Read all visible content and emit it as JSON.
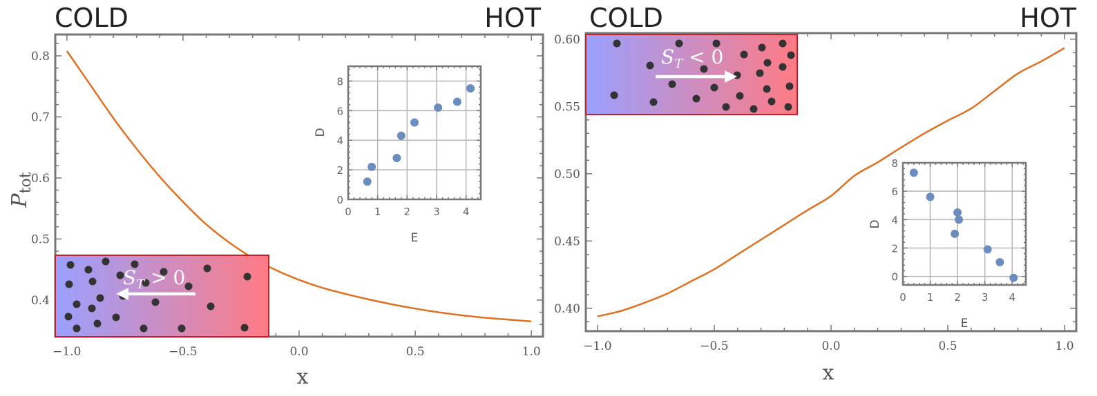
{
  "colors": {
    "curve": "#e07020",
    "point": "#6c8ebf",
    "particle": "#333333",
    "cold": "#9aa0ff",
    "hot": "#ff7b84",
    "box_border": "#c81e2a",
    "arrow": "#ffffff"
  },
  "chart_data": [
    {
      "type": "line",
      "corner_left": "COLD",
      "corner_right": "HOT",
      "xlabel": "x",
      "ylabel": "P",
      "ylabel_sub": "tot",
      "xlim": [
        -1.05,
        1.05
      ],
      "ylim": [
        0.34,
        0.835
      ],
      "xticks": [
        "−1.0",
        "−0.5",
        "0.0",
        "0.5",
        "1.0"
      ],
      "xtick_values": [
        -1.0,
        -0.5,
        0.0,
        0.5,
        1.0
      ],
      "yticks": [
        "0.4",
        "0.5",
        "0.6",
        "0.7",
        "0.8"
      ],
      "ytick_values": [
        0.4,
        0.5,
        0.6,
        0.7,
        0.8
      ],
      "series": [
        {
          "x": [
            -1.0,
            -0.9,
            -0.8,
            -0.7,
            -0.6,
            -0.5,
            -0.4,
            -0.3,
            -0.2,
            -0.1,
            0.0,
            0.1,
            0.2,
            0.3,
            0.4,
            0.5,
            0.6,
            0.7,
            0.8,
            0.9,
            1.0
          ],
          "y": [
            0.808,
            0.753,
            0.698,
            0.648,
            0.602,
            0.561,
            0.524,
            0.494,
            0.469,
            0.449,
            0.433,
            0.42,
            0.41,
            0.401,
            0.393,
            0.386,
            0.38,
            0.375,
            0.371,
            0.368,
            0.365
          ]
        }
      ],
      "box_label": "S",
      "box_label_sub": "T",
      "box_label_rel": " > 0",
      "inset": {
        "type": "scatter",
        "xlabel": "E",
        "ylabel": "D",
        "xlim": [
          0,
          4.5
        ],
        "ylim": [
          0,
          9
        ],
        "xticks": [
          "0",
          "1",
          "2",
          "3",
          "4"
        ],
        "xtick_values": [
          0,
          1,
          2,
          3,
          4
        ],
        "yticks": [
          "0",
          "2",
          "4",
          "6",
          "8"
        ],
        "ytick_values": [
          0,
          2,
          4,
          6,
          8
        ],
        "x": [
          0.65,
          0.8,
          1.65,
          1.8,
          2.25,
          3.05,
          3.7,
          4.15
        ],
        "y": [
          1.2,
          2.2,
          2.8,
          4.3,
          5.2,
          6.2,
          6.6,
          7.5
        ]
      }
    },
    {
      "type": "line",
      "corner_left": "COLD",
      "corner_right": "HOT",
      "xlabel": "x",
      "xlim": [
        -1.05,
        1.05
      ],
      "ylim": [
        0.383,
        0.6045
      ],
      "xticks": [
        "−1.0",
        "−0.5",
        "0.0",
        "0.5",
        "1.0"
      ],
      "xtick_values": [
        -1.0,
        -0.5,
        0.0,
        0.5,
        1.0
      ],
      "yticks": [
        "0.40",
        "0.45",
        "0.50",
        "0.55",
        "0.60"
      ],
      "ytick_values": [
        0.4,
        0.45,
        0.5,
        0.55,
        0.6
      ],
      "series": [
        {
          "x": [
            -1.0,
            -0.9,
            -0.8,
            -0.7,
            -0.6,
            -0.5,
            -0.4,
            -0.3,
            -0.2,
            -0.1,
            0.0,
            0.1,
            0.2,
            0.3,
            0.4,
            0.5,
            0.6,
            0.7,
            0.8,
            0.9,
            1.0
          ],
          "y": [
            0.394,
            0.398,
            0.404,
            0.411,
            0.42,
            0.429,
            0.44,
            0.451,
            0.462,
            0.473,
            0.4835,
            0.4985,
            0.5085,
            0.5195,
            0.53,
            0.5395,
            0.5485,
            0.5615,
            0.5745,
            0.5835,
            0.5935
          ]
        }
      ],
      "box_label": "S",
      "box_label_sub": "T",
      "box_label_rel": " < 0",
      "inset": {
        "type": "scatter",
        "xlabel": "E",
        "ylabel": "D",
        "xlim": [
          0,
          4.5
        ],
        "ylim": [
          -0.6,
          8
        ],
        "xticks": [
          "0",
          "1",
          "2",
          "3",
          "4"
        ],
        "xtick_values": [
          0,
          1,
          2,
          3,
          4
        ],
        "yticks": [
          "0",
          "2",
          "4",
          "6",
          "8"
        ],
        "ytick_values": [
          0,
          2,
          4,
          6,
          8
        ],
        "x": [
          0.4,
          1.0,
          1.9,
          2.0,
          2.05,
          3.1,
          3.55,
          4.05
        ],
        "y": [
          7.3,
          5.6,
          3.0,
          4.5,
          4.0,
          1.9,
          1.0,
          -0.1
        ]
      }
    }
  ]
}
